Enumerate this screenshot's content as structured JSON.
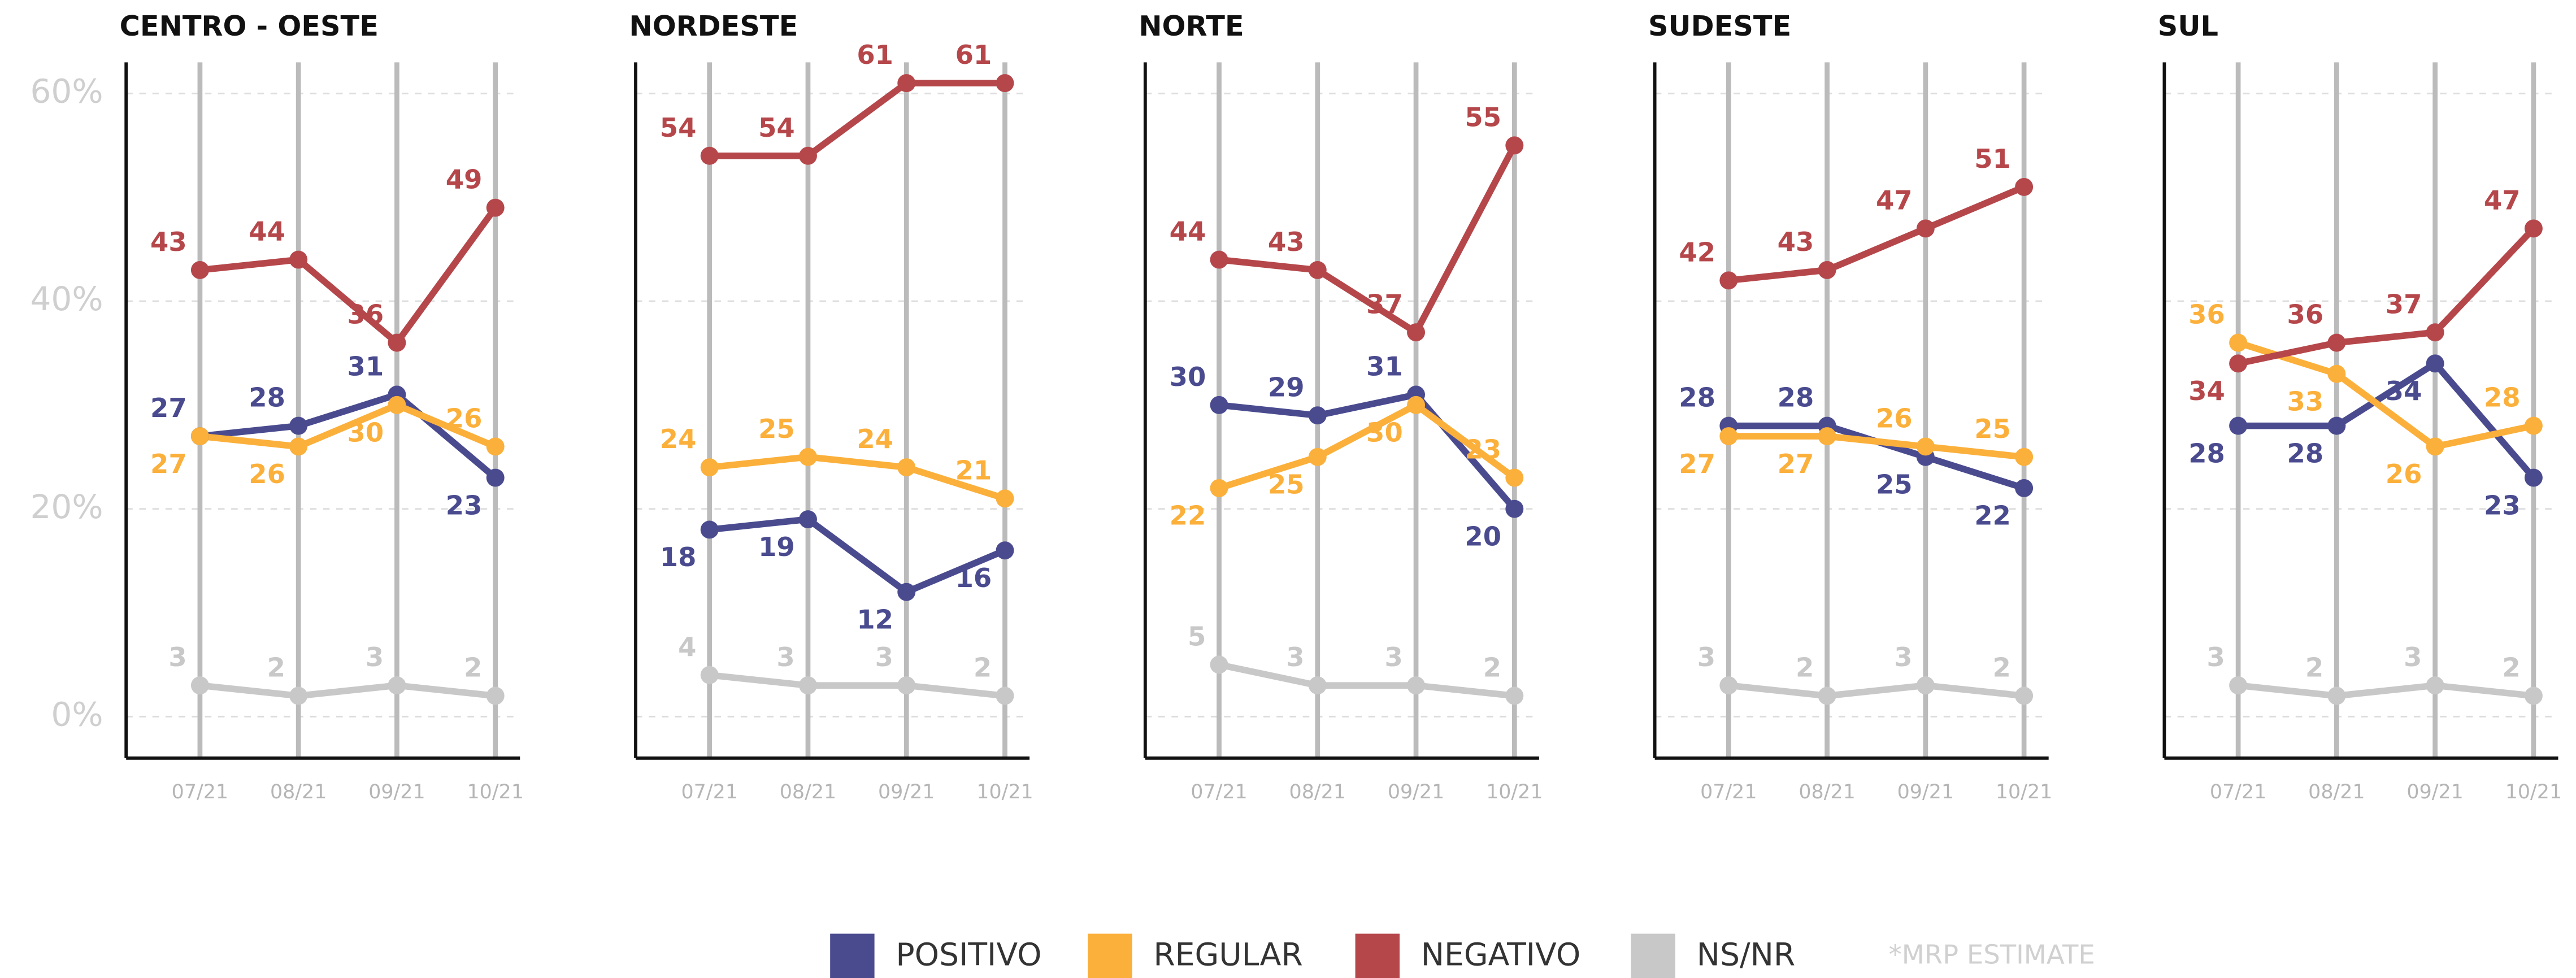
{
  "chart_data": [
    {
      "type": "line",
      "title": "CENTRO - OESTE",
      "categories": [
        "07/21",
        "08/21",
        "09/21",
        "10/21"
      ],
      "series": [
        {
          "name": "POSITIVO",
          "color": "#4a4b8f",
          "values": [
            27,
            28,
            31,
            23
          ]
        },
        {
          "name": "REGULAR",
          "color": "#fbb03b",
          "values": [
            27,
            26,
            30,
            26
          ]
        },
        {
          "name": "NEGATIVO",
          "color": "#b5474b",
          "values": [
            43,
            44,
            36,
            49
          ]
        },
        {
          "name": "NS/NR",
          "color": "#c8c8c8",
          "values": [
            3,
            2,
            3,
            2
          ]
        }
      ],
      "ylim": [
        -4,
        63
      ],
      "yticks": [
        {
          "value": 0,
          "label": "0%"
        },
        {
          "value": 20,
          "label": "20%"
        },
        {
          "value": 40,
          "label": "40%"
        },
        {
          "value": 60,
          "label": "60%"
        }
      ],
      "grid": true
    },
    {
      "type": "line",
      "title": "NORDESTE",
      "categories": [
        "07/21",
        "08/21",
        "09/21",
        "10/21"
      ],
      "series": [
        {
          "name": "POSITIVO",
          "color": "#4a4b8f",
          "values": [
            18,
            19,
            12,
            16
          ]
        },
        {
          "name": "REGULAR",
          "color": "#fbb03b",
          "values": [
            24,
            25,
            24,
            21
          ]
        },
        {
          "name": "NEGATIVO",
          "color": "#b5474b",
          "values": [
            54,
            54,
            61,
            61
          ]
        },
        {
          "name": "NS/NR",
          "color": "#c8c8c8",
          "values": [
            4,
            3,
            3,
            2
          ]
        }
      ],
      "ylim": [
        -4,
        63
      ],
      "grid": true
    },
    {
      "type": "line",
      "title": "NORTE",
      "categories": [
        "07/21",
        "08/21",
        "09/21",
        "10/21"
      ],
      "series": [
        {
          "name": "POSITIVO",
          "color": "#4a4b8f",
          "values": [
            30,
            29,
            31,
            20
          ]
        },
        {
          "name": "REGULAR",
          "color": "#fbb03b",
          "values": [
            22,
            25,
            30,
            23
          ]
        },
        {
          "name": "NEGATIVO",
          "color": "#b5474b",
          "values": [
            44,
            43,
            37,
            55
          ]
        },
        {
          "name": "NS/NR",
          "color": "#c8c8c8",
          "values": [
            5,
            3,
            3,
            2
          ]
        }
      ],
      "ylim": [
        -4,
        63
      ],
      "grid": true
    },
    {
      "type": "line",
      "title": "SUDESTE",
      "categories": [
        "07/21",
        "08/21",
        "09/21",
        "10/21"
      ],
      "series": [
        {
          "name": "POSITIVO",
          "color": "#4a4b8f",
          "values": [
            28,
            28,
            25,
            22
          ]
        },
        {
          "name": "REGULAR",
          "color": "#fbb03b",
          "values": [
            27,
            27,
            26,
            25
          ]
        },
        {
          "name": "NEGATIVO",
          "color": "#b5474b",
          "values": [
            42,
            43,
            47,
            51
          ]
        },
        {
          "name": "NS/NR",
          "color": "#c8c8c8",
          "values": [
            3,
            2,
            3,
            2
          ]
        }
      ],
      "ylim": [
        -4,
        63
      ],
      "grid": true
    },
    {
      "type": "line",
      "title": "SUL",
      "categories": [
        "07/21",
        "08/21",
        "09/21",
        "10/21"
      ],
      "series": [
        {
          "name": "POSITIVO",
          "color": "#4a4b8f",
          "values": [
            28,
            28,
            34,
            23
          ]
        },
        {
          "name": "REGULAR",
          "color": "#fbb03b",
          "values": [
            36,
            33,
            26,
            28
          ]
        },
        {
          "name": "NEGATIVO",
          "color": "#b5474b",
          "values": [
            34,
            36,
            37,
            47
          ]
        },
        {
          "name": "NS/NR",
          "color": "#c8c8c8",
          "values": [
            3,
            2,
            3,
            2
          ]
        }
      ],
      "ylim": [
        -4,
        63
      ],
      "grid": true
    }
  ],
  "footnote": "*MRP ESTIMATE"
}
